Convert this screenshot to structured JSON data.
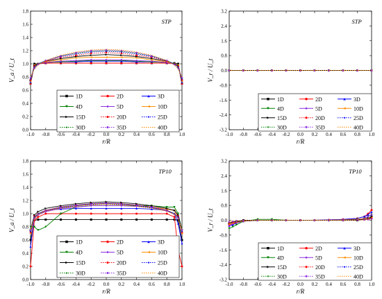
{
  "chart_data": [
    {
      "type": "line",
      "title": "STP",
      "xlabel": "r/R",
      "ylabel": "V_a / U_t",
      "xlim": [
        -1.0,
        1.0
      ],
      "ylim": [
        0.0,
        1.8
      ],
      "xticks": [
        "-1.0",
        "-0.8",
        "-0.6",
        "-0.4",
        "-0.2",
        "0.0",
        "0.2",
        "0.4",
        "0.6",
        "0.8",
        "1.0"
      ],
      "yticks": [
        "0.0",
        "0.2",
        "0.4",
        "0.6",
        "0.8",
        "1.0",
        "1.2",
        "1.4",
        "1.6",
        "1.8"
      ],
      "legend": "bottom-center",
      "x": [
        -1.0,
        -0.95,
        -0.9,
        -0.8,
        -0.6,
        -0.4,
        -0.2,
        0.0,
        0.2,
        0.4,
        0.6,
        0.8,
        0.9,
        0.95,
        1.0
      ],
      "series": [
        {
          "name": "1D",
          "values": [
            0.7,
            1.0,
            1.0,
            1.01,
            1.01,
            1.01,
            1.01,
            1.01,
            1.01,
            1.01,
            1.01,
            1.01,
            1.01,
            1.0,
            0.7
          ]
        },
        {
          "name": "2D",
          "values": [
            0.7,
            0.98,
            1.0,
            1.01,
            1.01,
            1.01,
            1.01,
            1.01,
            1.01,
            1.01,
            1.01,
            1.01,
            1.0,
            0.98,
            0.7
          ]
        },
        {
          "name": "3D",
          "values": [
            0.72,
            0.98,
            1.0,
            1.02,
            1.03,
            1.03,
            1.04,
            1.04,
            1.04,
            1.03,
            1.03,
            1.02,
            1.0,
            0.98,
            0.72
          ]
        },
        {
          "name": "4D",
          "values": [
            0.72,
            0.98,
            1.0,
            1.02,
            1.03,
            1.04,
            1.05,
            1.05,
            1.05,
            1.04,
            1.03,
            1.02,
            1.0,
            0.98,
            0.72
          ]
        },
        {
          "name": "5D",
          "values": [
            0.73,
            0.98,
            1.0,
            1.02,
            1.04,
            1.05,
            1.06,
            1.06,
            1.06,
            1.05,
            1.04,
            1.02,
            1.0,
            0.98,
            0.73
          ]
        },
        {
          "name": "10D",
          "values": [
            0.74,
            0.98,
            1.0,
            1.03,
            1.06,
            1.09,
            1.1,
            1.1,
            1.1,
            1.09,
            1.06,
            1.03,
            1.0,
            0.98,
            0.74
          ]
        },
        {
          "name": "15D",
          "values": [
            0.75,
            0.97,
            1.0,
            1.04,
            1.08,
            1.11,
            1.13,
            1.14,
            1.13,
            1.11,
            1.08,
            1.04,
            1.0,
            0.97,
            0.75
          ]
        },
        {
          "name": "20D",
          "values": [
            0.76,
            0.96,
            1.0,
            1.04,
            1.1,
            1.13,
            1.16,
            1.17,
            1.16,
            1.13,
            1.1,
            1.04,
            1.0,
            0.96,
            0.76
          ]
        },
        {
          "name": "25D",
          "values": [
            0.77,
            0.95,
            1.0,
            1.05,
            1.11,
            1.15,
            1.18,
            1.19,
            1.18,
            1.15,
            1.11,
            1.05,
            1.0,
            0.95,
            0.77
          ]
        },
        {
          "name": "30D",
          "values": [
            0.78,
            0.94,
            1.0,
            1.05,
            1.12,
            1.16,
            1.19,
            1.2,
            1.19,
            1.16,
            1.12,
            1.05,
            1.0,
            0.94,
            0.78
          ]
        },
        {
          "name": "35D",
          "values": [
            0.79,
            0.93,
            0.99,
            1.05,
            1.12,
            1.17,
            1.2,
            1.21,
            1.2,
            1.17,
            1.12,
            1.05,
            0.99,
            0.93,
            0.79
          ]
        },
        {
          "name": "40D",
          "values": [
            0.8,
            0.92,
            0.98,
            1.05,
            1.13,
            1.18,
            1.21,
            1.22,
            1.21,
            1.18,
            1.13,
            1.05,
            0.98,
            0.92,
            0.8
          ]
        }
      ]
    },
    {
      "type": "line",
      "title": "STP",
      "xlabel": "r/R",
      "ylabel": "V_r / U_t",
      "xlim": [
        -1.0,
        1.0
      ],
      "ylim": [
        -3.2,
        3.2
      ],
      "xticks": [
        "-1.0",
        "-0.8",
        "-0.6",
        "-0.4",
        "-0.2",
        "0.0",
        "0.2",
        "0.4",
        "0.6",
        "0.8",
        "1.0"
      ],
      "yticks": [
        "-3.2",
        "-2.4",
        "-1.6",
        "-0.8",
        "0.0",
        "0.8",
        "1.6",
        "2.4",
        "3.2"
      ],
      "legend": "bottom-right",
      "x": [
        -1.0,
        -0.8,
        -0.6,
        -0.4,
        -0.2,
        0.0,
        0.2,
        0.4,
        0.6,
        0.8,
        1.0
      ],
      "series": [
        {
          "name": "1D",
          "values": [
            0,
            0,
            0,
            0,
            0,
            0,
            0,
            0,
            0,
            0,
            0
          ]
        },
        {
          "name": "2D",
          "values": [
            0,
            0,
            0,
            0,
            0,
            0,
            0,
            0,
            0,
            0,
            0
          ]
        },
        {
          "name": "3D",
          "values": [
            0,
            0,
            0,
            0,
            0,
            0,
            0,
            0,
            0,
            0,
            0
          ]
        },
        {
          "name": "4D",
          "values": [
            0,
            0,
            0,
            0,
            0,
            0,
            0,
            0,
            0,
            0,
            0
          ]
        },
        {
          "name": "5D",
          "values": [
            0,
            0,
            0,
            0,
            0,
            0,
            0,
            0,
            0,
            0,
            0
          ]
        },
        {
          "name": "10D",
          "values": [
            0,
            0,
            0,
            0,
            0,
            0,
            0,
            0,
            0,
            0,
            0
          ]
        },
        {
          "name": "15D",
          "values": [
            0,
            0,
            0,
            0,
            0,
            0,
            0,
            0,
            0,
            0,
            0
          ]
        },
        {
          "name": "20D",
          "values": [
            0,
            0,
            0,
            0,
            0,
            0,
            0,
            0,
            0,
            0,
            0
          ]
        },
        {
          "name": "25D",
          "values": [
            0,
            0,
            0,
            0,
            0,
            0,
            0,
            0,
            0,
            0,
            0
          ]
        },
        {
          "name": "30D",
          "values": [
            0,
            0,
            0,
            0,
            0,
            0,
            0,
            0,
            0,
            0,
            0
          ]
        },
        {
          "name": "35D",
          "values": [
            0,
            0,
            0,
            0,
            0,
            0,
            0,
            0,
            0,
            0,
            0
          ]
        },
        {
          "name": "40D",
          "values": [
            0,
            0,
            0,
            0,
            0,
            0,
            0,
            0,
            0,
            0,
            0
          ]
        }
      ]
    },
    {
      "type": "line",
      "title": "TP10",
      "xlabel": "r/R",
      "ylabel": "V_a / U_t",
      "xlim": [
        -1.0,
        1.0
      ],
      "ylim": [
        0.0,
        1.8
      ],
      "xticks": [
        "-1.0",
        "-0.8",
        "-0.6",
        "-0.4",
        "-0.2",
        "0.0",
        "0.2",
        "0.4",
        "0.6",
        "0.8",
        "1.0"
      ],
      "yticks": [
        "0.0",
        "0.2",
        "0.4",
        "0.6",
        "0.8",
        "1.0",
        "1.2",
        "1.4",
        "1.6",
        "1.8"
      ],
      "legend": "bottom-center",
      "x": [
        -1.0,
        -0.95,
        -0.9,
        -0.8,
        -0.6,
        -0.4,
        -0.2,
        0.0,
        0.2,
        0.4,
        0.6,
        0.8,
        0.9,
        0.95,
        1.0
      ],
      "series": [
        {
          "name": "1D",
          "values": [
            0.6,
            0.9,
            0.91,
            0.91,
            0.91,
            0.91,
            0.91,
            0.91,
            0.91,
            0.91,
            0.91,
            0.91,
            0.91,
            0.9,
            0.6
          ]
        },
        {
          "name": "2D",
          "values": [
            0.2,
            0.9,
            0.95,
            1.0,
            1.0,
            1.0,
            1.0,
            1.0,
            1.0,
            1.0,
            1.0,
            1.0,
            0.95,
            0.45,
            0.2
          ]
        },
        {
          "name": "3D",
          "values": [
            0.5,
            0.95,
            1.0,
            1.05,
            1.07,
            1.08,
            1.08,
            1.08,
            1.08,
            1.08,
            1.07,
            1.05,
            1.0,
            0.85,
            0.55
          ]
        },
        {
          "name": "4D",
          "values": [
            0.8,
            0.8,
            0.75,
            0.8,
            1.0,
            1.1,
            1.12,
            1.12,
            1.12,
            1.12,
            1.12,
            1.1,
            1.1,
            1.0,
            0.75
          ]
        },
        {
          "name": "5D",
          "values": [
            0.7,
            0.92,
            0.98,
            1.03,
            1.08,
            1.1,
            1.12,
            1.12,
            1.12,
            1.11,
            1.1,
            1.07,
            1.05,
            0.95,
            0.7
          ]
        },
        {
          "name": "10D",
          "values": [
            0.7,
            0.94,
            1.0,
            1.05,
            1.1,
            1.12,
            1.15,
            1.15,
            1.15,
            1.13,
            1.1,
            1.07,
            1.05,
            0.95,
            0.7
          ]
        },
        {
          "name": "15D",
          "values": [
            0.75,
            0.98,
            1.03,
            1.08,
            1.12,
            1.15,
            1.17,
            1.18,
            1.17,
            1.15,
            1.12,
            1.08,
            1.05,
            0.98,
            0.75
          ]
        },
        {
          "name": "20D",
          "values": [
            0.72,
            0.96,
            1.0,
            1.05,
            1.1,
            1.13,
            1.15,
            1.16,
            1.15,
            1.13,
            1.1,
            1.05,
            1.0,
            0.96,
            0.72
          ]
        },
        {
          "name": "25D",
          "values": [
            0.73,
            0.95,
            1.0,
            1.05,
            1.1,
            1.13,
            1.15,
            1.16,
            1.15,
            1.13,
            1.1,
            1.05,
            1.0,
            0.95,
            0.73
          ]
        },
        {
          "name": "30D",
          "values": [
            0.74,
            0.94,
            1.0,
            1.04,
            1.09,
            1.12,
            1.14,
            1.15,
            1.14,
            1.12,
            1.09,
            1.04,
            1.0,
            0.94,
            0.74
          ]
        },
        {
          "name": "35D",
          "values": [
            0.75,
            0.93,
            0.99,
            1.04,
            1.09,
            1.12,
            1.14,
            1.15,
            1.14,
            1.12,
            1.09,
            1.04,
            0.99,
            0.93,
            0.75
          ]
        },
        {
          "name": "40D",
          "values": [
            0.76,
            0.92,
            0.98,
            1.04,
            1.08,
            1.11,
            1.13,
            1.14,
            1.13,
            1.11,
            1.08,
            1.04,
            0.98,
            0.92,
            0.76
          ]
        }
      ]
    },
    {
      "type": "line",
      "title": "TP10",
      "xlabel": "r/R",
      "ylabel": "V_r / U_t",
      "xlim": [
        -1.0,
        1.0
      ],
      "ylim": [
        -3.2,
        3.2
      ],
      "xticks": [
        "-1.0",
        "-0.8",
        "-0.6",
        "-0.4",
        "-0.2",
        "0.0",
        "0.2",
        "0.4",
        "0.6",
        "0.8",
        "1.0"
      ],
      "yticks": [
        "-3.2",
        "-2.4",
        "-1.6",
        "-0.8",
        "0.0",
        "0.8",
        "1.6",
        "2.4",
        "3.2"
      ],
      "legend": "bottom-right",
      "x": [
        -1.0,
        -0.95,
        -0.9,
        -0.8,
        -0.6,
        -0.4,
        -0.2,
        0.0,
        0.2,
        0.4,
        0.6,
        0.8,
        0.9,
        0.95,
        1.0
      ],
      "series": [
        {
          "name": "1D",
          "values": [
            -0.2,
            -0.1,
            -0.05,
            0,
            0,
            0,
            0,
            0,
            0,
            0,
            0,
            0,
            0.05,
            0.1,
            0.2
          ]
        },
        {
          "name": "2D",
          "values": [
            -0.25,
            -0.2,
            -0.1,
            -0.05,
            0,
            0,
            0,
            0,
            0,
            0.02,
            0.05,
            0.1,
            0.2,
            0.35,
            0.55
          ]
        },
        {
          "name": "3D",
          "values": [
            -0.3,
            -0.25,
            -0.15,
            -0.05,
            0,
            0,
            0,
            0,
            0,
            0.02,
            0.05,
            0.1,
            0.2,
            0.3,
            0.45
          ]
        },
        {
          "name": "4D",
          "values": [
            -0.45,
            -0.35,
            -0.25,
            -0.05,
            0.05,
            0.05,
            0,
            0,
            0,
            0,
            0,
            0.05,
            0.1,
            0.2,
            0.3
          ]
        },
        {
          "name": "5D",
          "values": [
            -0.3,
            -0.2,
            -0.15,
            -0.05,
            0,
            0,
            0,
            0,
            0,
            0,
            0.02,
            0.05,
            0.1,
            0.2,
            0.3
          ]
        },
        {
          "name": "10D",
          "values": [
            -0.2,
            -0.15,
            -0.1,
            -0.05,
            0,
            0,
            0,
            0,
            0,
            0,
            0.02,
            0.05,
            0.08,
            0.1,
            0.15
          ]
        },
        {
          "name": "15D",
          "values": [
            -0.15,
            -0.1,
            -0.08,
            -0.03,
            0,
            0,
            0,
            0,
            0,
            0,
            0,
            0.03,
            0.05,
            0.08,
            0.12
          ]
        },
        {
          "name": "20D",
          "values": [
            -0.12,
            -0.1,
            -0.05,
            -0.02,
            0,
            0,
            0,
            0,
            0,
            0,
            0,
            0.02,
            0.04,
            0.06,
            0.1
          ]
        },
        {
          "name": "25D",
          "values": [
            -0.1,
            -0.08,
            -0.05,
            -0.02,
            0,
            0,
            0,
            0,
            0,
            0,
            0,
            0.02,
            0.03,
            0.05,
            0.08
          ]
        },
        {
          "name": "30D",
          "values": [
            -0.1,
            -0.07,
            -0.04,
            -0.02,
            0,
            0,
            0,
            0,
            0,
            0,
            0,
            0.02,
            0.03,
            0.04,
            0.07
          ]
        },
        {
          "name": "35D",
          "values": [
            -0.08,
            -0.06,
            -0.04,
            -0.02,
            0,
            0,
            0,
            0,
            0,
            0,
            0,
            0.01,
            0.02,
            0.04,
            0.06
          ]
        },
        {
          "name": "40D",
          "values": [
            -0.07,
            -0.05,
            -0.03,
            -0.01,
            0,
            0,
            0,
            0,
            0,
            0,
            0,
            0.01,
            0.02,
            0.03,
            0.05
          ]
        }
      ]
    }
  ],
  "series_styles": [
    {
      "color": "#000000",
      "marker": "square",
      "dash": "solid"
    },
    {
      "color": "#ff0000",
      "marker": "circle",
      "dash": "solid"
    },
    {
      "color": "#0000ff",
      "marker": "triangle",
      "dash": "solid"
    },
    {
      "color": "#008000",
      "marker": "triangle-down",
      "dash": "solid"
    },
    {
      "color": "#8a2be2",
      "marker": "diamond",
      "dash": "solid"
    },
    {
      "color": "#ff8c00",
      "marker": "triangle-left",
      "dash": "solid"
    },
    {
      "color": "#000000",
      "marker": "triangle-right",
      "dash": "solid"
    },
    {
      "color": "#ff0000",
      "marker": "hexagon",
      "dash": "dotted"
    },
    {
      "color": "#0000ff",
      "marker": "star",
      "dash": "dotted"
    },
    {
      "color": "#008000",
      "marker": "star",
      "dash": "dotted"
    },
    {
      "color": "#8a2be2",
      "marker": "pentagon",
      "dash": "dotted"
    },
    {
      "color": "#ff8c00",
      "marker": "none",
      "dash": "dotted"
    }
  ]
}
